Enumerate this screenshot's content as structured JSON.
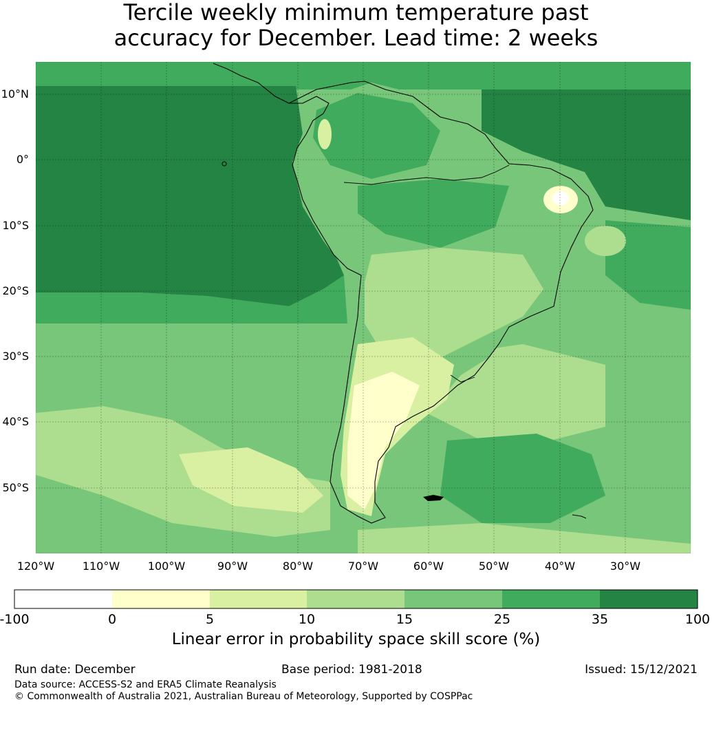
{
  "title": {
    "line1": "Tercile weekly minimum temperature past",
    "line2": "accuracy for December. Lead time: 2 weeks"
  },
  "map": {
    "lat_labels": [
      "10°N",
      "0°",
      "10°S",
      "20°S",
      "30°S",
      "40°S",
      "50°S"
    ],
    "lon_labels": [
      "120°W",
      "110°W",
      "100°W",
      "90°W",
      "80°W",
      "70°W",
      "60°W",
      "50°W",
      "40°W",
      "30°W"
    ]
  },
  "colorbar": {
    "label": "Linear error in probability space skill score (%)",
    "ticks": [
      "-100",
      "0",
      "5",
      "10",
      "15",
      "25",
      "35",
      "100"
    ],
    "colors": [
      "#ffffff",
      "#ffffcc",
      "#d9f0a3",
      "#addd8e",
      "#78c679",
      "#41ab5d",
      "#238443"
    ]
  },
  "footer": {
    "run_date": "Run date: December",
    "base_period": "Base period: 1981-2018",
    "issued": "Issued: 15/12/2021",
    "data_source": "Data source: ACCESS-S2 and ERA5 Climate Reanalysis",
    "copyright": "© Commonwealth of Australia 2021, Australian Bureau of Meteorology, Supported by COSPPac"
  }
}
